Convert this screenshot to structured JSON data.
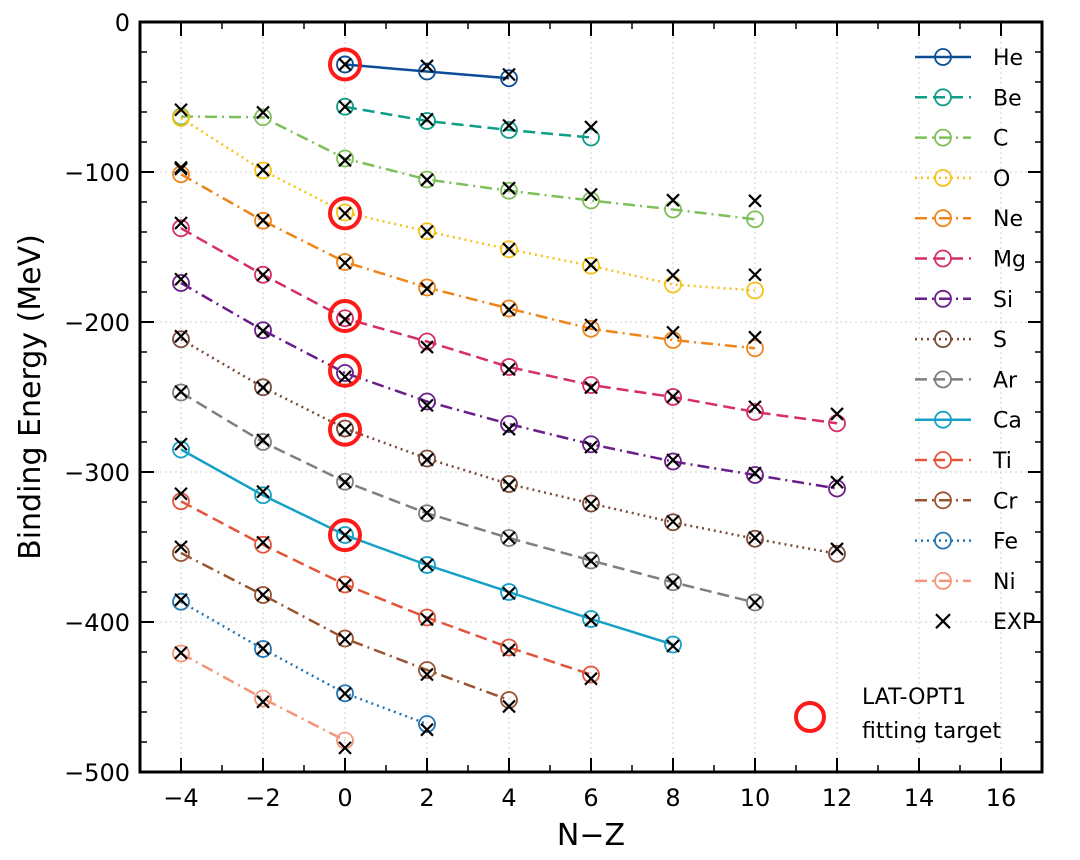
{
  "chart_data": {
    "type": "line",
    "xlabel": "N−Z",
    "ylabel": "Binding Energy (MeV)",
    "xlim": [
      -5,
      17
    ],
    "ylim": [
      -500,
      0
    ],
    "xticks": [
      -4,
      -2,
      0,
      2,
      4,
      6,
      8,
      10,
      12,
      14,
      16
    ],
    "xtick_labels": [
      "−4",
      "−2",
      "0",
      "2",
      "4",
      "6",
      "8",
      "10",
      "12",
      "14",
      "16"
    ],
    "yticks": [
      0,
      -100,
      -200,
      -300,
      -400,
      -500
    ],
    "ytick_labels": [
      "0",
      "−100",
      "−200",
      "−300",
      "−400",
      "−500"
    ],
    "grid": true,
    "legend_position": "top-right",
    "series": [
      {
        "name": "He",
        "color": "#0b4c97",
        "dash": "solid",
        "x": [
          0,
          2,
          4
        ],
        "y": [
          -28.3,
          -33.0,
          -37.5
        ]
      },
      {
        "name": "Be",
        "color": "#0e9e86",
        "dash": "dashed",
        "x": [
          0,
          2,
          4,
          6
        ],
        "y": [
          -56.5,
          -66.0,
          -72.0,
          -77.0
        ]
      },
      {
        "name": "C",
        "color": "#7fbf5a",
        "dash": "dashdot",
        "x": [
          -4,
          -2,
          0,
          2,
          4,
          6,
          8,
          10
        ],
        "y": [
          -63.0,
          -63.5,
          -91.0,
          -105.0,
          -112.5,
          -119.0,
          -125.0,
          -131.5
        ]
      },
      {
        "name": "O",
        "color": "#f7c21b",
        "dash": "dotted",
        "x": [
          -4,
          -2,
          0,
          2,
          4,
          6,
          8,
          10
        ],
        "y": [
          -64.0,
          -99.0,
          -127.0,
          -139.5,
          -151.5,
          -162.5,
          -175.0,
          -179.0
        ]
      },
      {
        "name": "Ne",
        "color": "#ef8418",
        "dash": "dashdot",
        "x": [
          -4,
          -2,
          0,
          2,
          4,
          6,
          8,
          10
        ],
        "y": [
          -101.5,
          -132.5,
          -160.0,
          -177.0,
          -191.0,
          -204.5,
          -212.0,
          -217.5
        ]
      },
      {
        "name": "Mg",
        "color": "#d62d6b",
        "dash": "dashed",
        "x": [
          -4,
          -2,
          0,
          2,
          4,
          6,
          8,
          10,
          12
        ],
        "y": [
          -137.5,
          -168.5,
          -197.5,
          -213.0,
          -230.0,
          -242.0,
          -250.0,
          -260.0,
          -267.5
        ]
      },
      {
        "name": "Si",
        "color": "#6a1e8a",
        "dash": "dashdot",
        "x": [
          -4,
          -2,
          0,
          2,
          4,
          6,
          8,
          10,
          12
        ],
        "y": [
          -174.0,
          -205.5,
          -234.0,
          -253.0,
          -268.0,
          -281.5,
          -293.0,
          -302.0,
          -311.0
        ]
      },
      {
        "name": "S",
        "color": "#7b4b3a",
        "dash": "dotted",
        "x": [
          -4,
          -2,
          0,
          2,
          4,
          6,
          8,
          10,
          12
        ],
        "y": [
          -211.5,
          -243.5,
          -271.0,
          -291.0,
          -308.0,
          -321.0,
          -333.5,
          -344.5,
          -354.5
        ]
      },
      {
        "name": "Ar",
        "color": "#7f7f7f",
        "dash": "dashed",
        "x": [
          -4,
          -2,
          0,
          2,
          4,
          6,
          8,
          10
        ],
        "y": [
          -247.0,
          -280.0,
          -306.5,
          -327.5,
          -344.0,
          -359.0,
          -373.5,
          -387.0
        ]
      },
      {
        "name": "Ca",
        "color": "#17a0c6",
        "dash": "solid",
        "x": [
          -4,
          -2,
          0,
          2,
          4,
          6,
          8
        ],
        "y": [
          -285.0,
          -315.5,
          -342.0,
          -362.0,
          -380.0,
          -398.0,
          -415.0
        ]
      },
      {
        "name": "Ti",
        "color": "#e2553a",
        "dash": "dashed",
        "x": [
          -4,
          -2,
          0,
          2,
          4,
          6
        ],
        "y": [
          -319.5,
          -348.5,
          -375.0,
          -397.0,
          -417.0,
          -435.0
        ]
      },
      {
        "name": "Cr",
        "color": "#9a5330",
        "dash": "dashdot",
        "x": [
          -4,
          -2,
          0,
          2,
          4
        ],
        "y": [
          -354.0,
          -382.0,
          -411.0,
          -432.0,
          -452.0
        ]
      },
      {
        "name": "Fe",
        "color": "#2476b4",
        "dash": "dotted",
        "x": [
          -4,
          -2,
          0,
          2
        ],
        "y": [
          -386.5,
          -418.0,
          -447.5,
          -468.0
        ]
      },
      {
        "name": "Ni",
        "color": "#f3957a",
        "dash": "dashdot",
        "x": [
          -4,
          -2,
          0
        ],
        "y": [
          -421.0,
          -451.0,
          -479.0
        ]
      }
    ],
    "exp_series": {
      "name": "EXP",
      "color": "#000000",
      "points": [
        [
          0,
          -28.3
        ],
        [
          2,
          -29.3
        ],
        [
          4,
          -35.0
        ],
        [
          0,
          -56.5
        ],
        [
          2,
          -64.9
        ],
        [
          4,
          -69.0
        ],
        [
          6,
          -70.0
        ],
        [
          -4,
          -58.5
        ],
        [
          -2,
          -60.3
        ],
        [
          0,
          -92.2
        ],
        [
          2,
          -105.3
        ],
        [
          4,
          -110.8
        ],
        [
          6,
          -115.0
        ],
        [
          8,
          -118.8
        ],
        [
          10,
          -119.2
        ],
        [
          -4,
          -98.0
        ],
        [
          -2,
          -98.7
        ],
        [
          0,
          -127.6
        ],
        [
          2,
          -139.8
        ],
        [
          4,
          -151.4
        ],
        [
          6,
          -162.0
        ],
        [
          8,
          -168.9
        ],
        [
          10,
          -168.5
        ],
        [
          -4,
          -97.0
        ],
        [
          -2,
          -132.2
        ],
        [
          0,
          -160.6
        ],
        [
          2,
          -177.8
        ],
        [
          4,
          -191.8
        ],
        [
          6,
          -202.0
        ],
        [
          8,
          -206.9
        ],
        [
          10,
          -210.2
        ],
        [
          -4,
          -134.0
        ],
        [
          -2,
          -168.6
        ],
        [
          0,
          -198.3
        ],
        [
          2,
          -216.7
        ],
        [
          4,
          -231.6
        ],
        [
          6,
          -243.7
        ],
        [
          8,
          -249.8
        ],
        [
          10,
          -256.6
        ],
        [
          12,
          -261.3
        ],
        [
          -4,
          -171.5
        ],
        [
          -2,
          -206.0
        ],
        [
          0,
          -236.5
        ],
        [
          2,
          -255.6
        ],
        [
          4,
          -271.4
        ],
        [
          6,
          -283.4
        ],
        [
          8,
          -292.0
        ],
        [
          10,
          -300.8
        ],
        [
          12,
          -306.8
        ],
        [
          -4,
          -209.5
        ],
        [
          -2,
          -243.7
        ],
        [
          0,
          -271.8
        ],
        [
          2,
          -291.8
        ],
        [
          4,
          -308.7
        ],
        [
          6,
          -321.2
        ],
        [
          8,
          -333.0
        ],
        [
          10,
          -343.8
        ],
        [
          12,
          -351.3
        ],
        [
          -4,
          -246.4
        ],
        [
          -2,
          -278.7
        ],
        [
          0,
          -306.7
        ],
        [
          2,
          -327.3
        ],
        [
          4,
          -343.8
        ],
        [
          6,
          -359.3
        ],
        [
          8,
          -373.7
        ],
        [
          10,
          -386.9
        ],
        [
          -4,
          -281.4
        ],
        [
          -2,
          -313.1
        ],
        [
          0,
          -342.1
        ],
        [
          2,
          -361.9
        ],
        [
          4,
          -380.9
        ],
        [
          6,
          -398.8
        ],
        [
          8,
          -416.0
        ],
        [
          -4,
          -314.5
        ],
        [
          -2,
          -346.9
        ],
        [
          0,
          -375.5
        ],
        [
          2,
          -398.2
        ],
        [
          4,
          -418.7
        ],
        [
          6,
          -437.8
        ],
        [
          -4,
          -349.9
        ],
        [
          -2,
          -381.9
        ],
        [
          0,
          -411.5
        ],
        [
          2,
          -435.0
        ],
        [
          4,
          -456.3
        ],
        [
          -4,
          -385.2
        ],
        [
          -2,
          -417.7
        ],
        [
          0,
          -447.7
        ],
        [
          2,
          -471.8
        ],
        [
          -4,
          -420.5
        ],
        [
          -2,
          -453.2
        ],
        [
          0,
          -483.9
        ]
      ]
    },
    "fitting_targets": {
      "label_line1": "LAT-OPT1",
      "label_line2": "fitting target",
      "color": "#ff1a1a",
      "points": [
        [
          0,
          -28.3
        ],
        [
          0,
          -127.6
        ],
        [
          0,
          -196.0
        ],
        [
          0,
          -232.5
        ],
        [
          0,
          -271.8
        ],
        [
          0,
          -342.1
        ]
      ]
    }
  }
}
